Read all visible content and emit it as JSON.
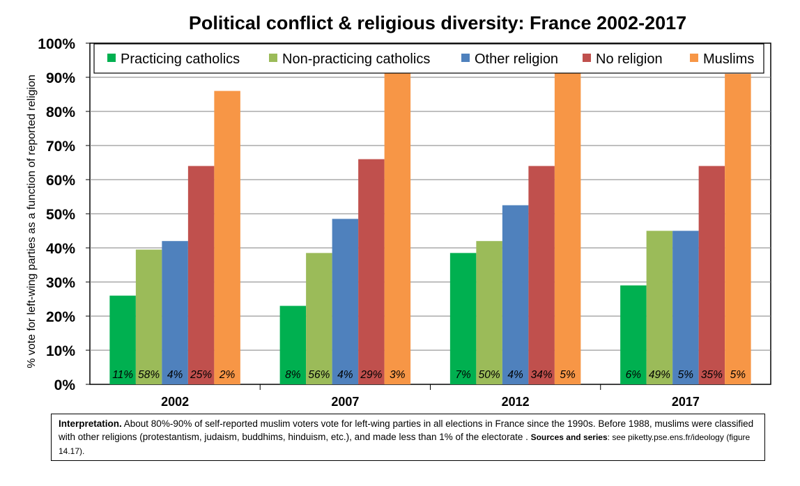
{
  "chart_data": {
    "type": "bar",
    "title": "Political conflict & religious diversity: France 2002-2017",
    "ylabel": "% vote for left-wing parties as a function of reported religion",
    "xlabel": "",
    "ylim": [
      0,
      100
    ],
    "yticks": [
      "0%",
      "10%",
      "20%",
      "30%",
      "40%",
      "50%",
      "60%",
      "70%",
      "80%",
      "90%",
      "100%"
    ],
    "grid": true,
    "legend_position": "top",
    "categories": [
      "2002",
      "2007",
      "2012",
      "2017"
    ],
    "series": [
      {
        "name": "Practicing catholics",
        "color": "#00b050",
        "values": [
          26,
          23,
          38.5,
          29
        ],
        "labels": [
          "11%",
          "8%",
          "7%",
          "6%"
        ]
      },
      {
        "name": "Non-practicing catholics",
        "color": "#9bbb59",
        "values": [
          39.5,
          38.5,
          42,
          45
        ],
        "labels": [
          "58%",
          "56%",
          "50%",
          "49%"
        ]
      },
      {
        "name": "Other religion",
        "color": "#4f81bd",
        "values": [
          42,
          48.5,
          52.5,
          45
        ],
        "labels": [
          "4%",
          "4%",
          "4%",
          "5%"
        ]
      },
      {
        "name": "No religion",
        "color": "#c0504d",
        "values": [
          64,
          66,
          64,
          64
        ],
        "labels": [
          "25%",
          "29%",
          "34%",
          "35%"
        ]
      },
      {
        "name": "Muslims",
        "color": "#f79646",
        "values": [
          86,
          94.5,
          91.5,
          91
        ],
        "labels": [
          "2%",
          "3%",
          "5%",
          "5%"
        ]
      }
    ]
  },
  "note": {
    "bold_lead": "Interpretation.",
    "text": " About 80%-90% of self-reported muslim voters vote for left-wing parties in all elections in France since the 1990s. Before 1988, muslims were classified with other religions (protestantism, judaism, buddhims, hinduism, etc.), and made less than 1% of the electorate . ",
    "sources_label": "Sources and series",
    "sources_text": ": see piketty.pse.ens.fr/ideology (figure 14.17)."
  }
}
